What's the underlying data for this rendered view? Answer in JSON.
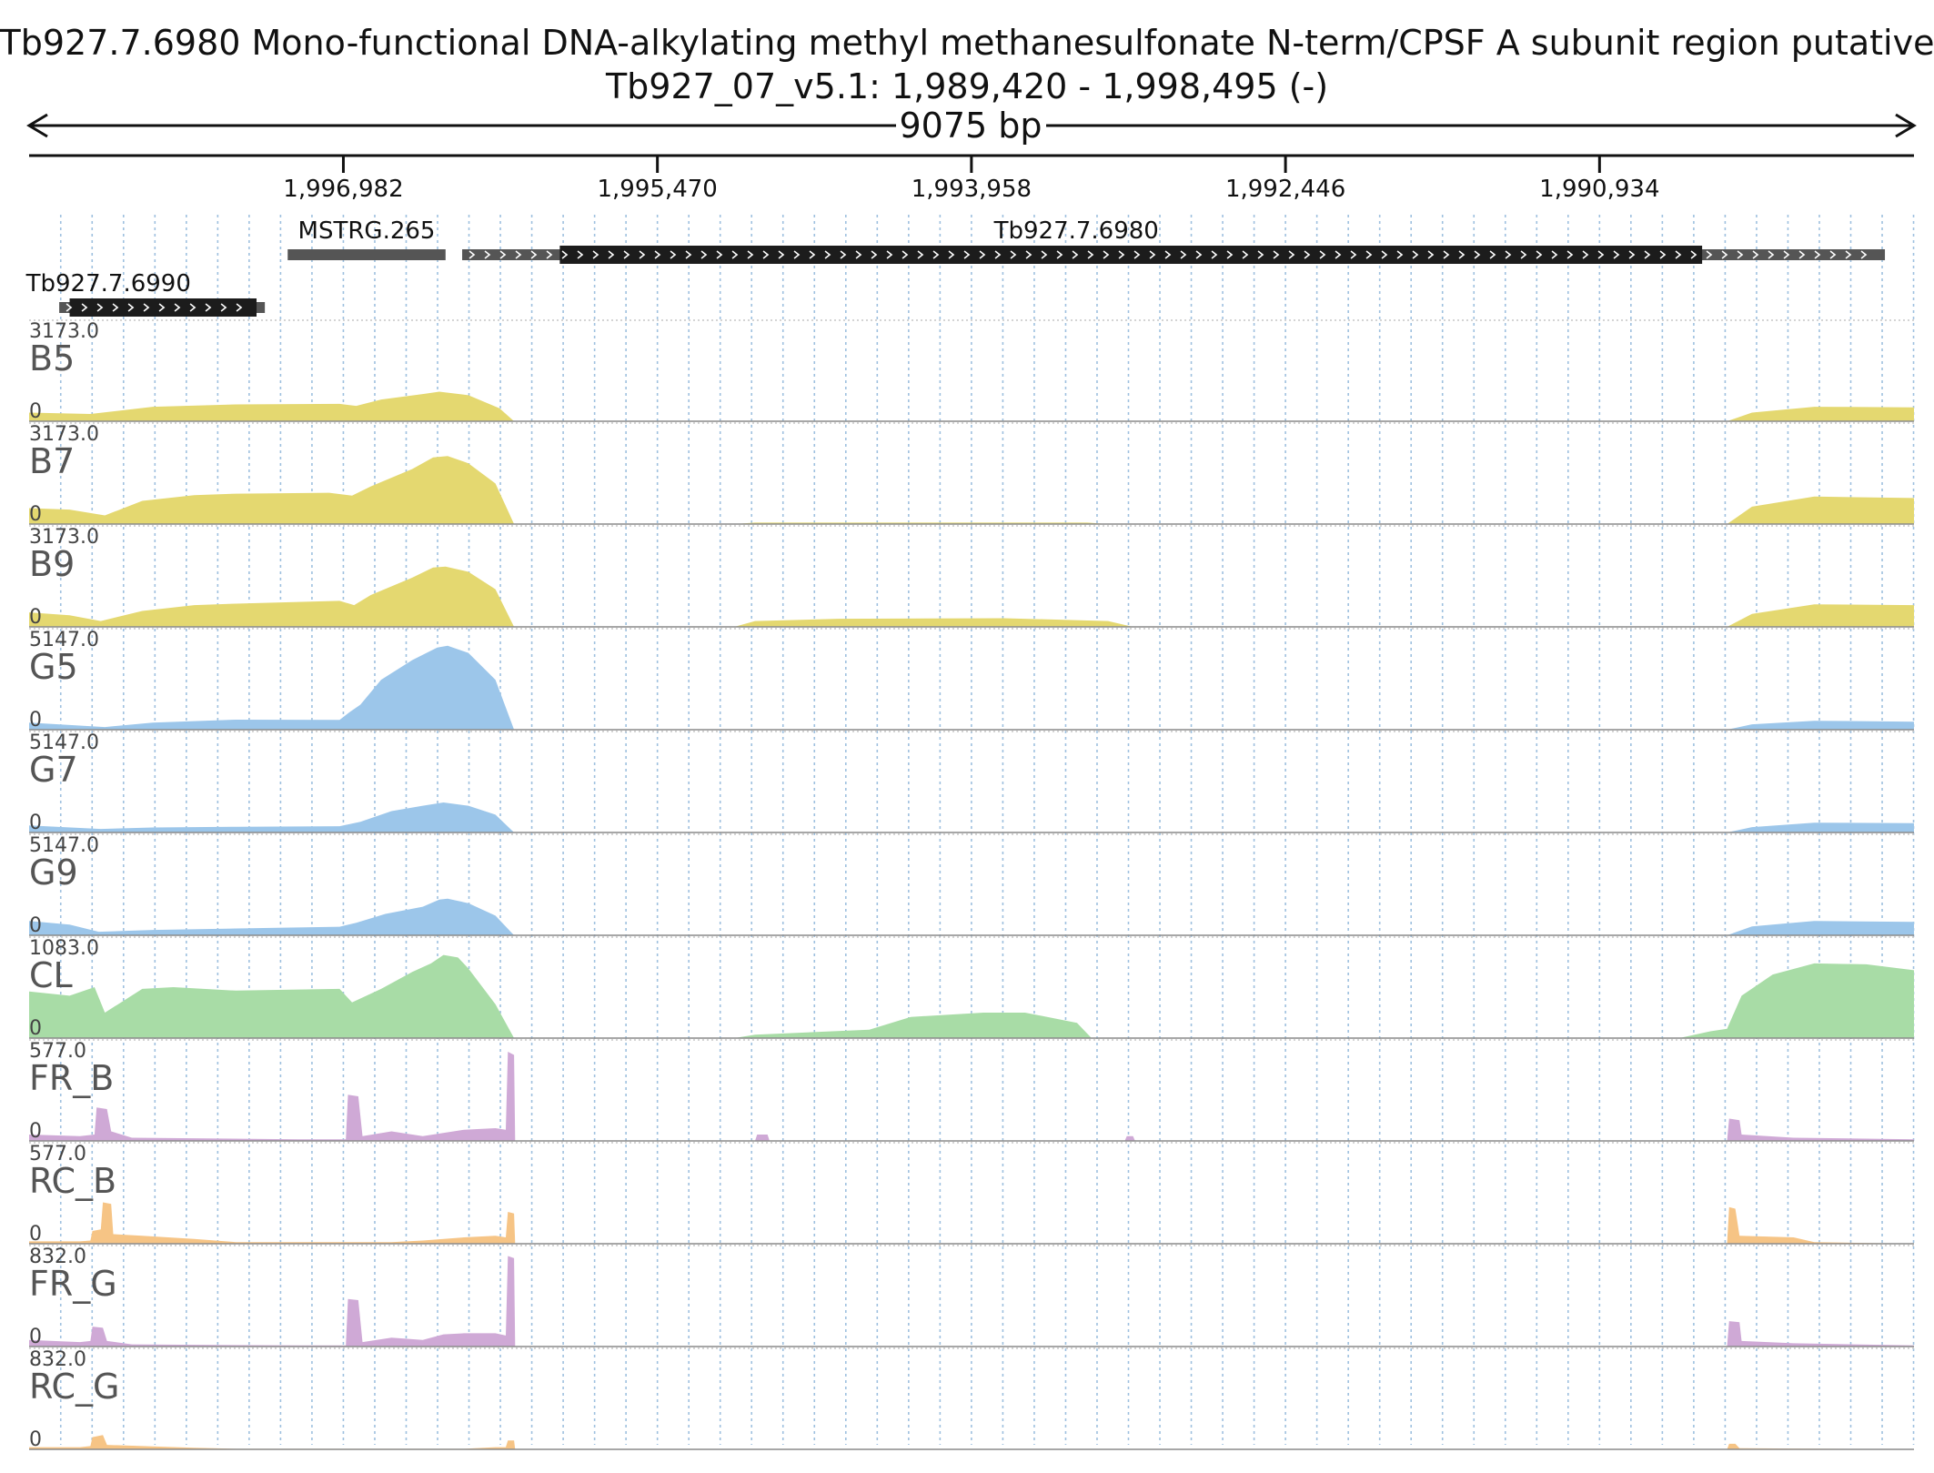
{
  "header": {
    "title": "Tb927.7.6980  Mono-functional DNA-alkylating methyl methanesulfonate N-term/CPSF A subunit region  putative",
    "locus": "Tb927_07_v5.1: 1,989,420 - 1,998,495 (-)",
    "span_label": "9075 bp"
  },
  "chart_data": {
    "type": "area",
    "title": "Tb927.7.6980  Mono-functional DNA-alkylating methyl methanesulfonate N-term/CPSF A subunit region  putative",
    "subtitle": "Tb927_07_v5.1: 1,989,420 - 1,998,495 (-)",
    "x_axis": {
      "range": [
        1998495,
        1989420
      ],
      "reversed": true,
      "ticks": [
        1996982,
        1995470,
        1993958,
        1992446,
        1990934
      ],
      "tick_labels": [
        "1,996,982",
        "1,995,470",
        "1,993,958",
        "1,992,446",
        "1,990,934"
      ]
    },
    "grid": "vertical dotted",
    "features": [
      {
        "name": "MSTRG.265",
        "start": 1997250,
        "end": 1996490,
        "strand": "",
        "row": 0
      },
      {
        "name": "Tb927.7.6980",
        "start": 1996410,
        "end": 1989560,
        "cds": [
          1995940,
          1990440
        ],
        "strand": "+",
        "row": 0
      },
      {
        "name": "Tb927.7.6990",
        "start": 1998350,
        "end": 1997360,
        "cds": [
          1998300,
          1997400
        ],
        "strand": "+",
        "row": 1
      }
    ],
    "series": [
      {
        "name": "B5",
        "max_label": "3173.0",
        "min_label": "0",
        "max": 3173,
        "color": "#e4d870",
        "points": [
          [
            1998495,
            300
          ],
          [
            1998200,
            250
          ],
          [
            1997900,
            500
          ],
          [
            1997500,
            580
          ],
          [
            1997000,
            600
          ],
          [
            1996920,
            530
          ],
          [
            1996800,
            750
          ],
          [
            1996600,
            940
          ],
          [
            1996520,
            1020
          ],
          [
            1996380,
            900
          ],
          [
            1996230,
            450
          ],
          [
            1996160,
            0
          ],
          [
            1990320,
            0
          ],
          [
            1990200,
            300
          ],
          [
            1989900,
            500
          ],
          [
            1989420,
            480
          ]
        ]
      },
      {
        "name": "B7",
        "max_label": "3173.0",
        "min_label": "0",
        "max": 3173,
        "color": "#e4d870",
        "points": [
          [
            1998495,
            550
          ],
          [
            1998300,
            500
          ],
          [
            1998130,
            300
          ],
          [
            1997950,
            800
          ],
          [
            1997700,
            1000
          ],
          [
            1997500,
            1050
          ],
          [
            1997050,
            1080
          ],
          [
            1996940,
            980
          ],
          [
            1996850,
            1300
          ],
          [
            1996650,
            1900
          ],
          [
            1996550,
            2300
          ],
          [
            1996480,
            2350
          ],
          [
            1996380,
            2100
          ],
          [
            1996250,
            1400
          ],
          [
            1996160,
            0
          ],
          [
            1995100,
            0
          ],
          [
            1995000,
            50
          ],
          [
            1993400,
            50
          ],
          [
            1993300,
            0
          ],
          [
            1990320,
            0
          ],
          [
            1990200,
            600
          ],
          [
            1989900,
            950
          ],
          [
            1989420,
            900
          ]
        ]
      },
      {
        "name": "B9",
        "max_label": "3173.0",
        "min_label": "0",
        "max": 3173,
        "color": "#e4d870",
        "points": [
          [
            1998495,
            500
          ],
          [
            1998300,
            400
          ],
          [
            1998150,
            200
          ],
          [
            1997950,
            550
          ],
          [
            1997700,
            750
          ],
          [
            1997500,
            800
          ],
          [
            1997000,
            900
          ],
          [
            1996930,
            750
          ],
          [
            1996850,
            1100
          ],
          [
            1996650,
            1700
          ],
          [
            1996550,
            2050
          ],
          [
            1996490,
            2080
          ],
          [
            1996380,
            1900
          ],
          [
            1996250,
            1300
          ],
          [
            1996160,
            0
          ],
          [
            1995100,
            0
          ],
          [
            1995000,
            200
          ],
          [
            1994600,
            280
          ],
          [
            1993800,
            300
          ],
          [
            1993300,
            200
          ],
          [
            1993180,
            0
          ],
          [
            1990320,
            0
          ],
          [
            1990200,
            450
          ],
          [
            1989900,
            780
          ],
          [
            1989420,
            750
          ]
        ]
      },
      {
        "name": "G5",
        "max_label": "5147.0",
        "min_label": "0",
        "max": 5147,
        "color": "#9cc6ea",
        "points": [
          [
            1998495,
            400
          ],
          [
            1998130,
            150
          ],
          [
            1997900,
            400
          ],
          [
            1997500,
            560
          ],
          [
            1997000,
            550
          ],
          [
            1996950,
            1000
          ],
          [
            1996900,
            1400
          ],
          [
            1996800,
            2800
          ],
          [
            1996650,
            3900
          ],
          [
            1996530,
            4600
          ],
          [
            1996480,
            4700
          ],
          [
            1996380,
            4300
          ],
          [
            1996250,
            2800
          ],
          [
            1996160,
            0
          ],
          [
            1990320,
            0
          ],
          [
            1990200,
            300
          ],
          [
            1989900,
            500
          ],
          [
            1989420,
            450
          ]
        ]
      },
      {
        "name": "G7",
        "max_label": "5147.0",
        "min_label": "0",
        "max": 5147,
        "color": "#9cc6ea",
        "points": [
          [
            1998495,
            400
          ],
          [
            1998150,
            200
          ],
          [
            1997900,
            280
          ],
          [
            1997500,
            320
          ],
          [
            1997000,
            350
          ],
          [
            1996900,
            600
          ],
          [
            1996750,
            1200
          ],
          [
            1996600,
            1500
          ],
          [
            1996500,
            1680
          ],
          [
            1996380,
            1500
          ],
          [
            1996250,
            1000
          ],
          [
            1996160,
            0
          ],
          [
            1990320,
            0
          ],
          [
            1990200,
            300
          ],
          [
            1989900,
            550
          ],
          [
            1989420,
            520
          ]
        ]
      },
      {
        "name": "G9",
        "max_label": "5147.0",
        "min_label": "0",
        "max": 5147,
        "color": "#9cc6ea",
        "points": [
          [
            1998495,
            800
          ],
          [
            1998300,
            600
          ],
          [
            1998160,
            200
          ],
          [
            1997900,
            300
          ],
          [
            1997500,
            380
          ],
          [
            1997000,
            480
          ],
          [
            1996920,
            700
          ],
          [
            1996780,
            1200
          ],
          [
            1996600,
            1600
          ],
          [
            1996520,
            2000
          ],
          [
            1996480,
            2050
          ],
          [
            1996380,
            1800
          ],
          [
            1996250,
            1100
          ],
          [
            1996160,
            0
          ],
          [
            1990320,
            0
          ],
          [
            1990200,
            500
          ],
          [
            1989900,
            800
          ],
          [
            1989420,
            750
          ]
        ]
      },
      {
        "name": "CL",
        "max_label": "1083.0",
        "min_label": "0",
        "max": 1083,
        "color": "#a8dca6",
        "points": [
          [
            1998495,
            550
          ],
          [
            1998300,
            500
          ],
          [
            1998180,
            600
          ],
          [
            1998130,
            300
          ],
          [
            1997950,
            580
          ],
          [
            1997800,
            600
          ],
          [
            1997500,
            560
          ],
          [
            1997000,
            580
          ],
          [
            1996940,
            420
          ],
          [
            1996800,
            580
          ],
          [
            1996650,
            780
          ],
          [
            1996560,
            880
          ],
          [
            1996500,
            980
          ],
          [
            1996430,
            950
          ],
          [
            1996380,
            820
          ],
          [
            1996250,
            400
          ],
          [
            1996160,
            0
          ],
          [
            1995100,
            0
          ],
          [
            1995000,
            40
          ],
          [
            1994450,
            100
          ],
          [
            1994250,
            250
          ],
          [
            1993900,
            300
          ],
          [
            1993700,
            300
          ],
          [
            1993450,
            180
          ],
          [
            1993380,
            0
          ],
          [
            1990550,
            0
          ],
          [
            1990400,
            80
          ],
          [
            1990320,
            110
          ],
          [
            1990250,
            500
          ],
          [
            1990100,
            750
          ],
          [
            1989900,
            880
          ],
          [
            1989650,
            870
          ],
          [
            1989420,
            800
          ]
        ]
      },
      {
        "name": "FR_B",
        "max_label": "577.0",
        "min_label": "0",
        "max": 577,
        "color": "#cfa9d6",
        "points": [
          [
            1998495,
            40
          ],
          [
            1998250,
            30
          ],
          [
            1998180,
            40
          ],
          [
            1998170,
            210
          ],
          [
            1998120,
            200
          ],
          [
            1998100,
            60
          ],
          [
            1998000,
            20
          ],
          [
            1997200,
            10
          ],
          [
            1996970,
            10
          ],
          [
            1996960,
            290
          ],
          [
            1996910,
            280
          ],
          [
            1996890,
            30
          ],
          [
            1996750,
            60
          ],
          [
            1996600,
            30
          ],
          [
            1996400,
            70
          ],
          [
            1996250,
            80
          ],
          [
            1996200,
            70
          ],
          [
            1996190,
            560
          ],
          [
            1996160,
            540
          ],
          [
            1996155,
            0
          ],
          [
            1995000,
            0
          ],
          [
            1994990,
            40
          ],
          [
            1994940,
            40
          ],
          [
            1994930,
            0
          ],
          [
            1993220,
            0
          ],
          [
            1993210,
            30
          ],
          [
            1993180,
            30
          ],
          [
            1993170,
            0
          ],
          [
            1990320,
            0
          ],
          [
            1990310,
            140
          ],
          [
            1990260,
            130
          ],
          [
            1990250,
            40
          ],
          [
            1990000,
            20
          ],
          [
            1989420,
            10
          ]
        ]
      },
      {
        "name": "RC_B",
        "max_label": "577.0",
        "min_label": "0",
        "max": 577,
        "color": "#f6c485",
        "points": [
          [
            1998495,
            15
          ],
          [
            1998250,
            15
          ],
          [
            1998200,
            20
          ],
          [
            1998190,
            80
          ],
          [
            1998150,
            90
          ],
          [
            1998140,
            260
          ],
          [
            1998100,
            250
          ],
          [
            1998090,
            60
          ],
          [
            1997950,
            50
          ],
          [
            1997700,
            30
          ],
          [
            1997500,
            10
          ],
          [
            1996750,
            10
          ],
          [
            1996600,
            20
          ],
          [
            1996400,
            40
          ],
          [
            1996250,
            50
          ],
          [
            1996200,
            40
          ],
          [
            1996190,
            200
          ],
          [
            1996160,
            190
          ],
          [
            1996155,
            0
          ],
          [
            1990320,
            0
          ],
          [
            1990310,
            230
          ],
          [
            1990280,
            220
          ],
          [
            1990260,
            50
          ],
          [
            1990000,
            40
          ],
          [
            1989900,
            10
          ],
          [
            1989420,
            0
          ]
        ]
      },
      {
        "name": "FR_G",
        "max_label": "832.0",
        "min_label": "0",
        "max": 832,
        "color": "#cfa9d6",
        "points": [
          [
            1998495,
            60
          ],
          [
            1998250,
            40
          ],
          [
            1998200,
            50
          ],
          [
            1998190,
            180
          ],
          [
            1998140,
            170
          ],
          [
            1998120,
            50
          ],
          [
            1998000,
            20
          ],
          [
            1997200,
            10
          ],
          [
            1996970,
            10
          ],
          [
            1996960,
            430
          ],
          [
            1996910,
            420
          ],
          [
            1996890,
            40
          ],
          [
            1996750,
            80
          ],
          [
            1996600,
            60
          ],
          [
            1996500,
            110
          ],
          [
            1996400,
            120
          ],
          [
            1996250,
            120
          ],
          [
            1996200,
            100
          ],
          [
            1996190,
            820
          ],
          [
            1996160,
            800
          ],
          [
            1996155,
            0
          ],
          [
            1990320,
            0
          ],
          [
            1990310,
            230
          ],
          [
            1990260,
            220
          ],
          [
            1990250,
            50
          ],
          [
            1990000,
            30
          ],
          [
            1989420,
            10
          ]
        ]
      },
      {
        "name": "RC_G",
        "max_label": "832.0",
        "min_label": "0",
        "max": 832,
        "color": "#f6c485",
        "points": [
          [
            1998495,
            20
          ],
          [
            1998250,
            20
          ],
          [
            1998200,
            30
          ],
          [
            1998190,
            110
          ],
          [
            1998140,
            130
          ],
          [
            1998120,
            40
          ],
          [
            1997950,
            30
          ],
          [
            1997700,
            15
          ],
          [
            1997500,
            5
          ],
          [
            1996400,
            5
          ],
          [
            1996250,
            20
          ],
          [
            1996200,
            20
          ],
          [
            1996190,
            80
          ],
          [
            1996160,
            80
          ],
          [
            1996155,
            0
          ],
          [
            1990320,
            0
          ],
          [
            1990310,
            50
          ],
          [
            1990280,
            50
          ],
          [
            1990260,
            10
          ],
          [
            1989420,
            0
          ]
        ]
      }
    ]
  }
}
